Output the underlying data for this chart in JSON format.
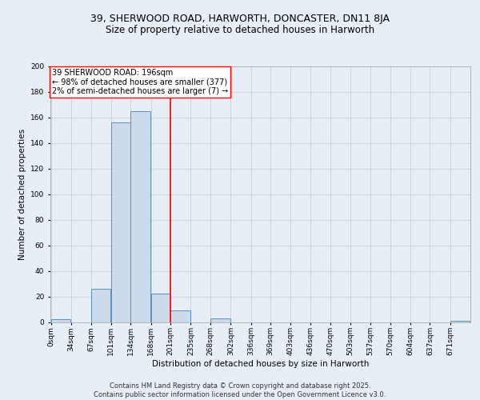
{
  "title1": "39, SHERWOOD ROAD, HARWORTH, DONCASTER, DN11 8JA",
  "title2": "Size of property relative to detached houses in Harworth",
  "xlabel": "Distribution of detached houses by size in Harworth",
  "ylabel": "Number of detached properties",
  "bin_labels": [
    "0sqm",
    "34sqm",
    "67sqm",
    "101sqm",
    "134sqm",
    "168sqm",
    "201sqm",
    "235sqm",
    "268sqm",
    "302sqm",
    "336sqm",
    "369sqm",
    "403sqm",
    "436sqm",
    "470sqm",
    "503sqm",
    "537sqm",
    "570sqm",
    "604sqm",
    "637sqm",
    "671sqm"
  ],
  "bar_values": [
    2,
    0,
    26,
    156,
    165,
    22,
    9,
    0,
    3,
    0,
    0,
    0,
    0,
    0,
    0,
    0,
    0,
    0,
    0,
    0,
    1
  ],
  "bar_left_edges": [
    0,
    34,
    67,
    101,
    134,
    168,
    201,
    235,
    268,
    302,
    336,
    369,
    403,
    436,
    470,
    503,
    537,
    570,
    604,
    637,
    671
  ],
  "bin_width": 33,
  "bar_color": "#cddaeb",
  "bar_edge_color": "#5a8fc0",
  "red_line_x": 201,
  "annotation_box_text": "39 SHERWOOD ROAD: 196sqm\n← 98% of detached houses are smaller (377)\n2% of semi-detached houses are larger (7) →",
  "ylim": [
    0,
    200
  ],
  "yticks": [
    0,
    20,
    40,
    60,
    80,
    100,
    120,
    140,
    160,
    180,
    200
  ],
  "footer_text": "Contains HM Land Registry data © Crown copyright and database right 2025.\nContains public sector information licensed under the Open Government Licence v3.0.",
  "background_color": "#e8eef5",
  "plot_bg_color": "#e8eef5",
  "grid_color": "#c8d0dc",
  "title_fontsize": 9,
  "subtitle_fontsize": 8.5,
  "annotation_fontsize": 7,
  "footer_fontsize": 6,
  "axis_label_fontsize": 7.5,
  "tick_fontsize": 6.5
}
